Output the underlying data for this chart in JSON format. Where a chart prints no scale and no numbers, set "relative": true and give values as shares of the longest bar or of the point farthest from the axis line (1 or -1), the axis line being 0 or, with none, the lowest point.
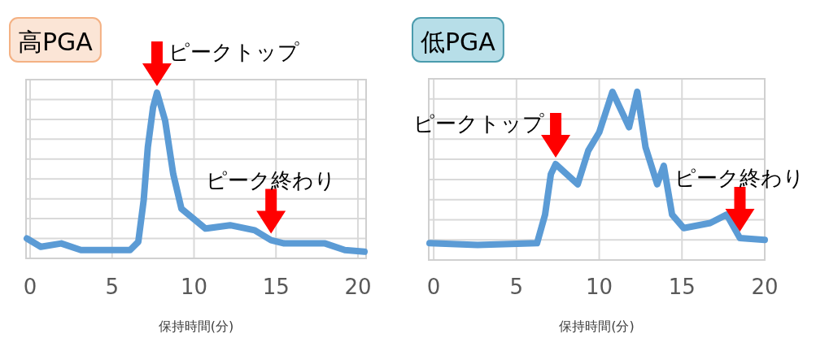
{
  "chart_data": [
    {
      "type": "line",
      "title": "高PGA",
      "xlabel": "保持時間(分)",
      "relative": true,
      "xlim": [
        -0.25,
        20.5
      ],
      "xticks": [
        0,
        5,
        10,
        15,
        20
      ],
      "grid": true,
      "color": "#5b9bd5",
      "x": [
        -0.2,
        0.65,
        1.9,
        3.1,
        6.1,
        6.6,
        6.93,
        7.18,
        7.5,
        7.74,
        8.24,
        8.73,
        9.23,
        10.7,
        12.2,
        13.7,
        14.7,
        15.5,
        18.0,
        19.2,
        20.4
      ],
      "values": [
        0.12,
        0.07,
        0.09,
        0.05,
        0.05,
        0.1,
        0.35,
        0.67,
        0.91,
        1,
        0.83,
        0.51,
        0.3,
        0.18,
        0.2,
        0.17,
        0.11,
        0.09,
        0.09,
        0.05,
        0.04
      ],
      "annotations": [
        {
          "text": "ピークトップ",
          "x": 7.74,
          "y": 1
        },
        {
          "text": "ピーク終わり",
          "x": 14.7,
          "y": 0.11
        }
      ]
    },
    {
      "type": "line",
      "title": "低PGA",
      "xlabel": "保持時間(分)",
      "relative": true,
      "xlim": [
        -0.3,
        20
      ],
      "xticks": [
        0,
        5,
        10,
        15,
        20
      ],
      "grid": true,
      "color": "#5b9bd5",
      "x": [
        -0.25,
        2.65,
        6.24,
        6.73,
        7.08,
        7.37,
        8.7,
        9.34,
        10.0,
        10.8,
        11.8,
        12.3,
        12.8,
        13.5,
        13.9,
        14.4,
        15.1,
        16.7,
        17.7,
        18.5,
        20
      ],
      "values": [
        0.1,
        0.09,
        0.1,
        0.27,
        0.51,
        0.57,
        0.45,
        0.65,
        0.76,
        1,
        0.79,
        1,
        0.67,
        0.45,
        0.56,
        0.27,
        0.19,
        0.22,
        0.27,
        0.13,
        0.12
      ],
      "annotations": [
        {
          "text": "ピークトップ",
          "x": 7.37,
          "y": 0.57
        },
        {
          "text": "ピーク終わり",
          "x": 18.5,
          "y": 0.13
        }
      ]
    }
  ]
}
